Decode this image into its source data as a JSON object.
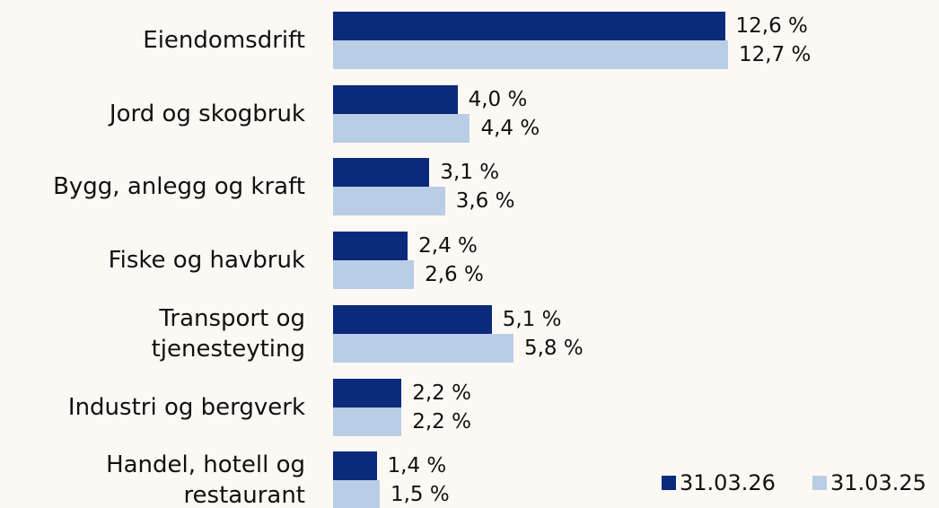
{
  "chart_data": {
    "type": "bar",
    "orientation": "horizontal",
    "categories": [
      "Eiendomsdrift",
      "Jord og skogbruk",
      "Bygg, anlegg og kraft",
      "Fiske og havbruk",
      "Transport og\ntjenesteyting",
      "Industri og bergverk",
      "Handel, hotell og\nrestaurant"
    ],
    "series": [
      {
        "name": "31.03.26",
        "color": "#0b2a7c",
        "values": [
          12.6,
          4.0,
          3.1,
          2.4,
          5.1,
          2.2,
          1.4
        ],
        "value_labels": [
          "12,6 %",
          "4,0 %",
          "3,1 %",
          "2,4 %",
          "5,1 %",
          "2,2 %",
          "1,4 %"
        ]
      },
      {
        "name": "31.03.25",
        "color": "#b9cde5",
        "values": [
          12.7,
          4.4,
          3.6,
          2.6,
          5.8,
          2.2,
          1.5
        ],
        "value_labels": [
          "12,7 %",
          "4,4 %",
          "3,6 %",
          "2,6 %",
          "5,8 %",
          "2,2 %",
          "1,5 %"
        ]
      }
    ],
    "legend": "bottom-right"
  }
}
